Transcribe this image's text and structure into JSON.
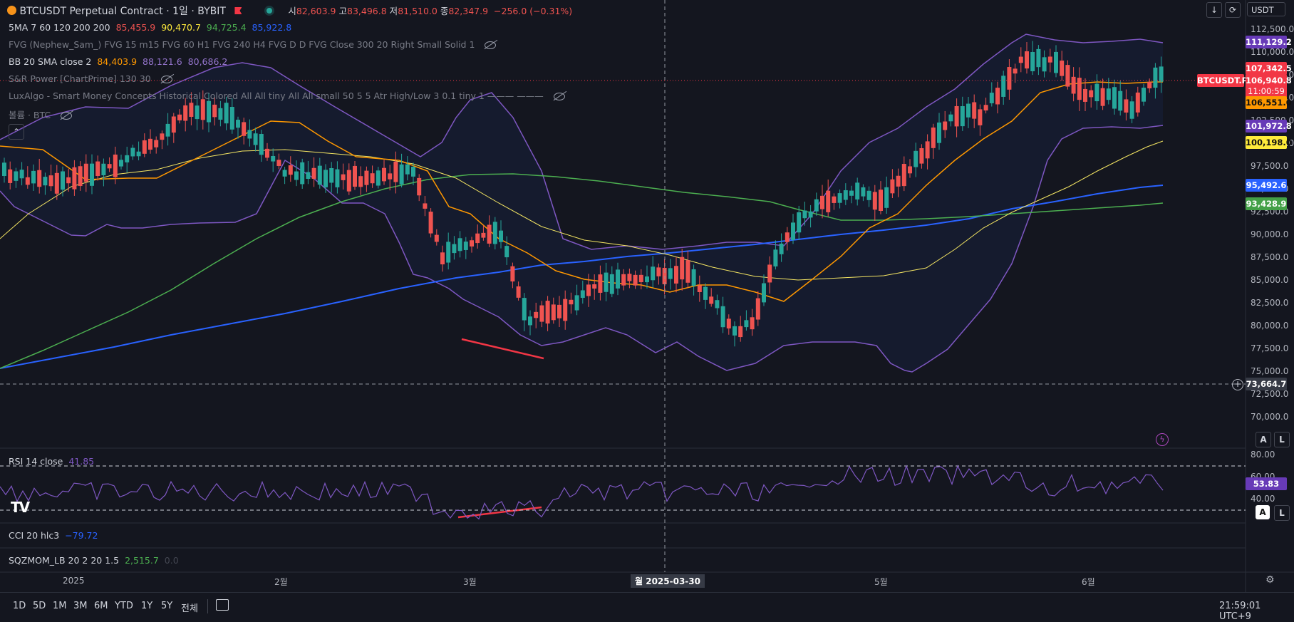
{
  "header": {
    "symbol_title": "BTCUSDT Perpetual Contract · 1일 · BYBIT",
    "ohlc": {
      "open_label": "시",
      "open": "82,603.9",
      "high_label": "고",
      "high": "83,496.8",
      "low_label": "저",
      "low": "81,510.0",
      "close_label": "종",
      "close": "82,347.9",
      "change": "−256.0 (−0.31%)"
    },
    "currency": "USDT"
  },
  "legends": {
    "ma": {
      "name": "5MA 7 60 120 200 200",
      "v1": "85,455.9",
      "v2": "90,470.7",
      "v3": "94,725.4",
      "v4": "85,922.8"
    },
    "fvg": "FVG (Nephew_Sam_) FVG 15 m15 FVG 60 H1 FVG 240 H4 FVG D D FVG Close 300 20 Right Small Solid 1",
    "bb": {
      "name": "BB 20 SMA close 2",
      "v1": "84,403.9",
      "v2": "88,121.6",
      "v3": "80,686.2"
    },
    "snr": "S&R Power [ChartPrime] 130 30",
    "luxalgo": "LuxAlgo - Smart Money Concepts Historical Colored All All tiny All All small 50 5 5 Atr High/Low 3 0.1 tiny 1 ——— ———",
    "volume": "볼륨 · BTC"
  },
  "price_axis": {
    "ticks": [
      "112,500.0",
      "110,000.0",
      "107,500.0",
      "105,000.0",
      "102,500.0",
      "100,000.0",
      "97,500.0",
      "95,000.0",
      "92,500.0",
      "90,000.0",
      "87,500.0",
      "85,000.0",
      "82,500.0",
      "80,000.0",
      "77,500.0",
      "75,000.0",
      "72,500.0",
      "70,000.0"
    ],
    "badges": {
      "bb_upper": "111,129.2",
      "last_price": "107,342.5",
      "symbol_tag": "BTCUSDT.P",
      "cursor_price": "106,940.8",
      "countdown": "11:00:59",
      "ma_fast": "106,551.0",
      "bb_lower": "101,972.8",
      "ma_yellow": "100,198.0",
      "ma_blue": "95,492.6",
      "ma_green": "93,428.9",
      "crosshair": "73,664.7"
    }
  },
  "rsi": {
    "name": "RSI 14 close",
    "value": "41.85",
    "ticks": [
      "80.00",
      "60.00",
      "40.00"
    ],
    "badge": "53.83"
  },
  "cci": {
    "name": "CCI 20 hlc3",
    "value": "−79.72"
  },
  "sqz": {
    "name": "SQZMOM_LB 20 2 20 1.5",
    "value": "2,515.7",
    "value2": "0.0"
  },
  "time_axis": {
    "labels": [
      "2025",
      "2월",
      "3월",
      "5월",
      "6월"
    ],
    "crosshair_date": "월 2025-03-30"
  },
  "toolbar": {
    "ranges": [
      "1D",
      "5D",
      "1M",
      "3M",
      "6M",
      "YTD",
      "1Y",
      "5Y",
      "전체"
    ],
    "clock": "21:59:01 UTC+9"
  },
  "buttons": {
    "auto": "A",
    "log": "L"
  },
  "colors": {
    "up": "#26a69a",
    "down": "#ef5350",
    "bb": "#7e57c2",
    "ma_orange": "#ff9800",
    "ma_yellow": "#f5e663",
    "ma_blue": "#2962ff",
    "ma_green": "#4caf50",
    "bg": "#14161f"
  }
}
